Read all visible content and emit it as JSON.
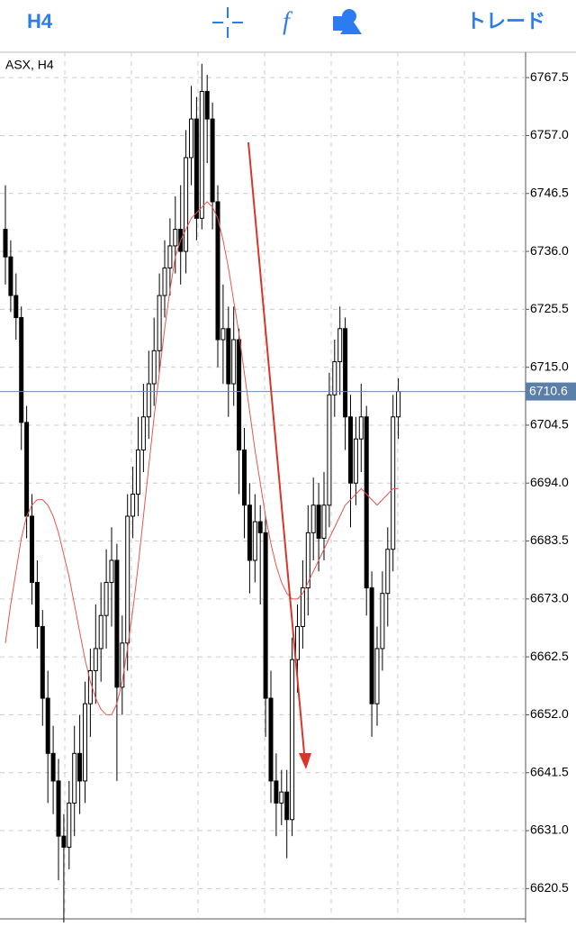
{
  "toolbar": {
    "timeframe": "H4",
    "trade": "トレード"
  },
  "chart_data": {
    "type": "candlestick",
    "title": "ASX, H4",
    "open": [
      6740,
      6735,
      6728,
      6724,
      6705,
      6688,
      6676,
      6668,
      6655,
      6645,
      6640,
      6630,
      6628,
      6636,
      6645,
      6640,
      6654,
      6660,
      6664,
      6670,
      6676,
      6680,
      6657,
      6665,
      6688,
      6692,
      6700,
      6706,
      6712,
      6718,
      6728,
      6733,
      6737,
      6740,
      6736,
      6753,
      6760,
      6742,
      6765,
      6760,
      6745,
      6720,
      6722,
      6712,
      6720,
      6700,
      6690,
      6680,
      6687,
      6685,
      6655,
      6640,
      6636,
      6638,
      6633,
      6662,
      6668,
      6675,
      6685,
      6690,
      6684,
      6690,
      6710,
      6716,
      6722,
      6706,
      6694,
      6702,
      6706,
      6675,
      6654,
      6664,
      6674,
      6682,
      6706
    ],
    "high": [
      6748,
      6738,
      6732,
      6726,
      6708,
      6692,
      6680,
      6671,
      6660,
      6650,
      6644,
      6634,
      6640,
      6650,
      6652,
      6658,
      6664,
      6672,
      6676,
      6682,
      6686,
      6683,
      6670,
      6692,
      6697,
      6706,
      6712,
      6718,
      6724,
      6732,
      6738,
      6742,
      6746,
      6748,
      6758,
      6766,
      6764,
      6770,
      6768,
      6763,
      6748,
      6730,
      6726,
      6726,
      6722,
      6704,
      6694,
      6692,
      6690,
      6688,
      6660,
      6645,
      6642,
      6642,
      6666,
      6672,
      6680,
      6690,
      6695,
      6694,
      6696,
      6714,
      6720,
      6726,
      6724,
      6710,
      6706,
      6712,
      6708,
      6678,
      6668,
      6678,
      6686,
      6710,
      6713
    ],
    "low": [
      6730,
      6725,
      6720,
      6700,
      6684,
      6672,
      6664,
      6650,
      6636,
      6634,
      6622,
      6614,
      6624,
      6630,
      6634,
      6636,
      6648,
      6654,
      6658,
      6664,
      6668,
      6640,
      6652,
      6660,
      6684,
      6688,
      6696,
      6702,
      6708,
      6714,
      6724,
      6728,
      6732,
      6730,
      6732,
      6748,
      6738,
      6740,
      6752,
      6740,
      6715,
      6712,
      6706,
      6708,
      6692,
      6684,
      6674,
      6676,
      6672,
      6648,
      6636,
      6630,
      6632,
      6626,
      6630,
      6656,
      6664,
      6670,
      6680,
      6678,
      6680,
      6686,
      6706,
      6710,
      6700,
      6686,
      6690,
      6696,
      6670,
      6648,
      6650,
      6660,
      6668,
      6678,
      6702
    ],
    "close": [
      6735,
      6728,
      6724,
      6705,
      6688,
      6676,
      6668,
      6655,
      6645,
      6640,
      6630,
      6628,
      6636,
      6645,
      6640,
      6654,
      6660,
      6664,
      6670,
      6676,
      6680,
      6657,
      6665,
      6688,
      6692,
      6700,
      6706,
      6712,
      6718,
      6728,
      6733,
      6737,
      6740,
      6736,
      6753,
      6760,
      6742,
      6765,
      6760,
      6745,
      6720,
      6722,
      6712,
      6720,
      6700,
      6690,
      6680,
      6687,
      6685,
      6655,
      6640,
      6636,
      6638,
      6633,
      6662,
      6668,
      6675,
      6685,
      6690,
      6684,
      6690,
      6710,
      6716,
      6722,
      6706,
      6694,
      6702,
      6706,
      6675,
      6654,
      6664,
      6674,
      6682,
      6706,
      6710.6
    ],
    "moving_average": {
      "color": "#e8554e",
      "values": [
        6665,
        6672,
        6678,
        6684,
        6688,
        6690,
        6691,
        6691,
        6690,
        6688,
        6685,
        6681,
        6677,
        6672,
        6667,
        6662,
        6658,
        6655,
        6653,
        6652,
        6652,
        6654,
        6658,
        6664,
        6671,
        6679,
        6688,
        6697,
        6706,
        6714,
        6722,
        6729,
        6735,
        6738,
        6740,
        6742,
        6743,
        6744,
        6745,
        6744,
        6742,
        6738,
        6733,
        6727,
        6721,
        6714,
        6707,
        6700,
        6694,
        6688,
        6683,
        6679,
        6676,
        6674,
        6673,
        6673,
        6674,
        6676,
        6678,
        6680,
        6682,
        6684,
        6686,
        6688,
        6690,
        6691,
        6692,
        6693,
        6692,
        6691,
        6690,
        6691,
        6692,
        6693,
        6693
      ]
    },
    "current_price": 6710.6,
    "ylim": [
      6615,
      6772.1
    ],
    "yticks": [
      6767.5,
      {
        "value": 6757,
        "label": "6757.0"
      },
      6746.5,
      {
        "value": 6736,
        "label": "6736.0"
      },
      6725.5,
      {
        "value": 6715,
        "label": "6715.0"
      },
      6704.5,
      {
        "value": 6694,
        "label": "6694.0"
      },
      6683.5,
      {
        "value": 6673,
        "label": "6673.0"
      },
      6662.5,
      {
        "value": 6652,
        "label": "6652.0"
      },
      6641.5,
      {
        "value": 6631,
        "label": "6631.0"
      },
      6620.5
    ],
    "grid": true
  }
}
